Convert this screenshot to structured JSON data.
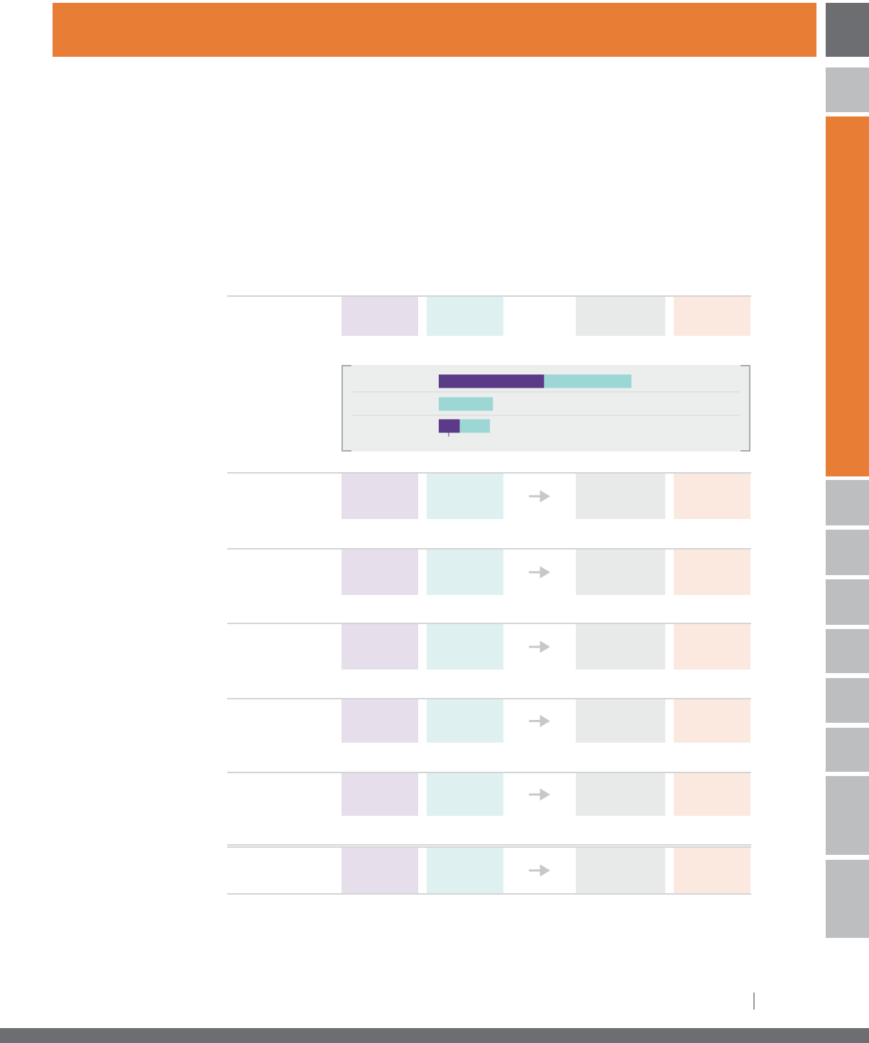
{
  "chart_data": {
    "type": "bar",
    "orientation": "horizontal",
    "stacked": true,
    "categories": [
      null,
      null,
      null
    ],
    "series": [
      {
        "color": "#5b3a87",
        "values": [
          35,
          0,
          7
        ]
      },
      {
        "color": "#9cd7d5",
        "values": [
          29,
          18,
          10
        ]
      }
    ],
    "xlim": [
      0,
      100
    ]
  }
}
